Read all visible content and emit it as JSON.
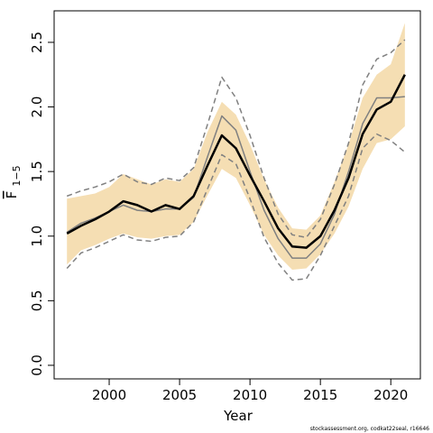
{
  "chart_data": {
    "type": "line",
    "xlabel": "Year",
    "ylabel": "F",
    "ylabel_sub": "1−5",
    "footer": "stockassessment.org, codkat22seal, r16646",
    "x": [
      1997,
      1998,
      1999,
      2000,
      2001,
      2002,
      2003,
      2004,
      2005,
      2006,
      2007,
      2008,
      2009,
      2010,
      2011,
      2012,
      2013,
      2014,
      2015,
      2016,
      2017,
      2018,
      2019,
      2020,
      2021
    ],
    "band": {
      "color": "#f5deb3",
      "lower": [
        0.78,
        0.89,
        0.93,
        0.98,
        1.02,
        0.99,
        0.98,
        1.0,
        1.01,
        1.11,
        1.32,
        1.52,
        1.45,
        1.24,
        1.01,
        0.85,
        0.74,
        0.75,
        0.86,
        1.02,
        1.23,
        1.52,
        1.72,
        1.75,
        1.85
      ],
      "upper": [
        1.29,
        1.31,
        1.33,
        1.38,
        1.48,
        1.44,
        1.4,
        1.44,
        1.42,
        1.52,
        1.81,
        2.04,
        1.94,
        1.71,
        1.44,
        1.22,
        1.06,
        1.05,
        1.16,
        1.42,
        1.71,
        2.07,
        2.25,
        2.33,
        2.65
      ]
    },
    "series": [
      {
        "color": "#808080",
        "style": "dashed",
        "width": 1.5,
        "values": [
          1.31,
          1.35,
          1.38,
          1.42,
          1.48,
          1.42,
          1.4,
          1.45,
          1.43,
          1.53,
          1.87,
          2.23,
          2.07,
          1.78,
          1.45,
          1.17,
          1.01,
          0.99,
          1.13,
          1.4,
          1.72,
          2.17,
          2.37,
          2.42,
          2.52
        ]
      },
      {
        "color": "#808080",
        "style": "dashed",
        "width": 1.5,
        "values": [
          0.75,
          0.87,
          0.91,
          0.96,
          1.01,
          0.97,
          0.96,
          0.99,
          1.0,
          1.11,
          1.37,
          1.63,
          1.56,
          1.29,
          0.99,
          0.79,
          0.66,
          0.67,
          0.85,
          1.08,
          1.31,
          1.68,
          1.79,
          1.74,
          1.65
        ]
      },
      {
        "color": "#808080",
        "style": "solid",
        "width": 1.5,
        "values": [
          1.03,
          1.1,
          1.14,
          1.19,
          1.24,
          1.2,
          1.19,
          1.21,
          1.21,
          1.3,
          1.62,
          1.93,
          1.82,
          1.5,
          1.2,
          0.98,
          0.83,
          0.83,
          0.94,
          1.17,
          1.5,
          1.87,
          2.07,
          2.07,
          2.08
        ]
      },
      {
        "color": "#000000",
        "style": "solid",
        "width": 2.5,
        "values": [
          1.02,
          1.08,
          1.13,
          1.19,
          1.27,
          1.24,
          1.19,
          1.24,
          1.21,
          1.31,
          1.55,
          1.78,
          1.68,
          1.47,
          1.27,
          1.06,
          0.92,
          0.91,
          1.0,
          1.2,
          1.45,
          1.79,
          1.98,
          2.04,
          2.25
        ]
      }
    ],
    "xlim": [
      1996.09,
      2022.1
    ],
    "ylim": [
      -0.105,
      2.744
    ],
    "xticks": [
      2000,
      2005,
      2010,
      2015,
      2020
    ],
    "yticks": [
      {
        "value": 0,
        "label": "0.0"
      },
      {
        "value": 0.5,
        "label": "0.5"
      },
      {
        "value": 1,
        "label": "1.0"
      },
      {
        "value": 1.5,
        "label": "1.5"
      },
      {
        "value": 2,
        "label": "2.0"
      },
      {
        "value": 2.5,
        "label": "2.5"
      }
    ]
  }
}
